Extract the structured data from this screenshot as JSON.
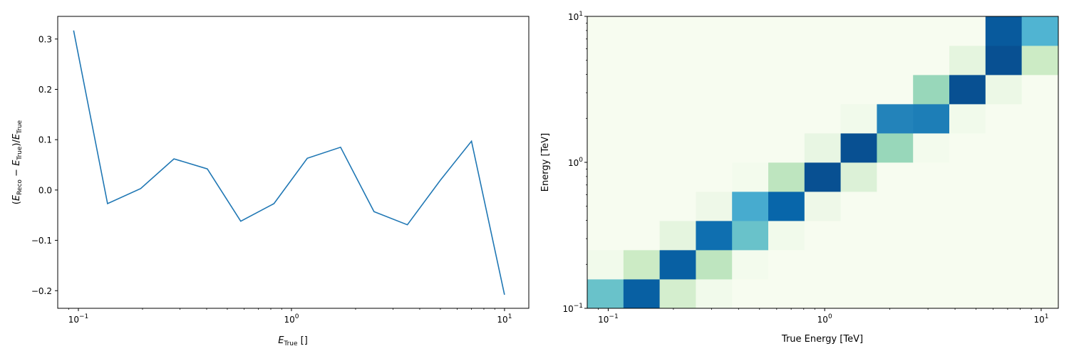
{
  "chart_data": [
    {
      "type": "line",
      "xscale": "log",
      "xlim": [
        0.08,
        13
      ],
      "ylim": [
        -0.235,
        0.345
      ],
      "xlabel": {
        "main": "E",
        "sub": "True",
        "tail": " []"
      },
      "ylabel": {
        "parts": [
          "(E",
          "Reco",
          " − E",
          "True",
          ")/E",
          "True"
        ]
      },
      "yticks": [
        {
          "value": -0.2,
          "label": "−0.2"
        },
        {
          "value": -0.1,
          "label": "−0.1"
        },
        {
          "value": 0.0,
          "label": "0.0"
        },
        {
          "value": 0.1,
          "label": "0.1"
        },
        {
          "value": 0.2,
          "label": "0.2"
        },
        {
          "value": 0.3,
          "label": "0.3"
        }
      ],
      "xticks": [
        {
          "value": 0.1,
          "base": "10",
          "exp": "−1"
        },
        {
          "value": 1,
          "base": "10",
          "exp": "0"
        },
        {
          "value": 10,
          "base": "10",
          "exp": "1"
        }
      ],
      "series": [
        {
          "color": "#1f77b4",
          "x": [
            0.095,
            0.137,
            0.196,
            0.281,
            0.403,
            0.578,
            0.828,
            1.187,
            1.7,
            2.44,
            3.5,
            5.01,
            7.0,
            10.0
          ],
          "y": [
            0.317,
            -0.027,
            0.003,
            0.062,
            0.042,
            -0.062,
            -0.027,
            0.063,
            0.085,
            -0.043,
            -0.069,
            0.02,
            0.097,
            -0.208
          ]
        }
      ]
    },
    {
      "type": "heatmap",
      "xscale": "log",
      "yscale": "log",
      "colormap": "GnBu",
      "xlim": [
        0.08,
        12
      ],
      "ylim": [
        0.1,
        10
      ],
      "xlabel": "True Energy [TeV]",
      "ylabel": "Energy [TeV]",
      "xticks": [
        {
          "value": 0.1,
          "base": "10",
          "exp": "−1"
        },
        {
          "value": 1,
          "base": "10",
          "exp": "0"
        },
        {
          "value": 10,
          "base": "10",
          "exp": "1"
        }
      ],
      "yticks": [
        {
          "value": 0.1,
          "base": "10",
          "exp": "−1"
        },
        {
          "value": 1,
          "base": "10",
          "exp": "0"
        },
        {
          "value": 10,
          "base": "10",
          "exp": "1"
        }
      ],
      "x_edges": [
        0.08,
        0.1176,
        0.1728,
        0.254,
        0.3733,
        0.5487,
        0.8064,
        1.185,
        1.742,
        2.56,
        3.763,
        5.531,
        8.129,
        12.0
      ],
      "y_edges": [
        0.1,
        0.1585,
        0.2512,
        0.3981,
        0.631,
        1.0,
        1.585,
        2.512,
        3.981,
        6.31,
        10.0
      ],
      "values": [
        [
          0.55,
          0.9,
          0.2,
          0.03,
          0.0,
          0.0,
          0.0,
          0.0,
          0.0,
          0.0,
          0.0,
          0.0,
          0.0
        ],
        [
          0.03,
          0.25,
          0.9,
          0.3,
          0.02,
          0.0,
          0.0,
          0.0,
          0.0,
          0.0,
          0.0,
          0.0,
          0.0
        ],
        [
          0.0,
          0.0,
          0.1,
          0.85,
          0.55,
          0.03,
          0.0,
          0.0,
          0.0,
          0.0,
          0.0,
          0.0,
          0.0
        ],
        [
          0.0,
          0.0,
          0.0,
          0.05,
          0.65,
          0.88,
          0.05,
          0.0,
          0.0,
          0.0,
          0.0,
          0.0,
          0.0
        ],
        [
          0.0,
          0.0,
          0.0,
          0.0,
          0.02,
          0.3,
          0.95,
          0.15,
          0.0,
          0.0,
          0.0,
          0.0,
          0.0
        ],
        [
          0.0,
          0.0,
          0.0,
          0.0,
          0.0,
          0.0,
          0.08,
          0.95,
          0.42,
          0.02,
          0.0,
          0.0,
          0.0
        ],
        [
          0.0,
          0.0,
          0.0,
          0.0,
          0.0,
          0.0,
          0.0,
          0.03,
          0.78,
          0.8,
          0.03,
          0.0,
          0.0
        ],
        [
          0.0,
          0.0,
          0.0,
          0.0,
          0.0,
          0.0,
          0.0,
          0.0,
          0.0,
          0.42,
          0.95,
          0.06,
          0.0
        ],
        [
          0.0,
          0.0,
          0.0,
          0.0,
          0.0,
          0.0,
          0.0,
          0.0,
          0.0,
          0.0,
          0.1,
          0.95,
          0.25
        ],
        [
          0.0,
          0.0,
          0.0,
          0.0,
          0.0,
          0.0,
          0.0,
          0.0,
          0.0,
          0.0,
          0.0,
          0.0,
          0.0
        ]
      ],
      "top_row_override": [
        0.0,
        0.0,
        0.0,
        0.0,
        0.0,
        0.0,
        0.0,
        0.0,
        0.0,
        0.0,
        0.0,
        0.92,
        0.62
      ]
    }
  ]
}
